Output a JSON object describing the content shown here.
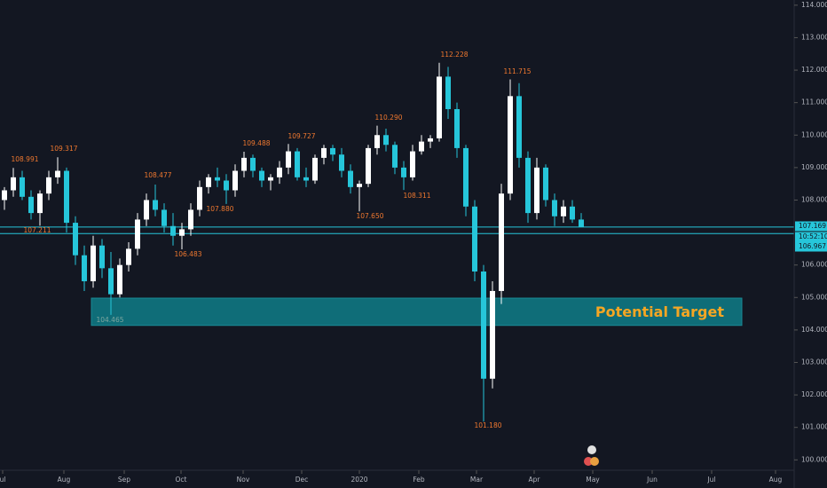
{
  "chart_data": {
    "type": "candlestick",
    "open": [
      108.0,
      108.3,
      108.7,
      108.1,
      107.6,
      108.2,
      108.7,
      108.9,
      107.3,
      106.3,
      105.5,
      106.6,
      105.9,
      105.1,
      106.0,
      106.5,
      107.4,
      108.0,
      107.7,
      107.2,
      106.9,
      107.1,
      107.7,
      108.4,
      108.7,
      108.6,
      108.3,
      108.9,
      109.3,
      108.9,
      108.6,
      108.7,
      109.0,
      109.5,
      108.7,
      108.6,
      109.3,
      109.6,
      109.4,
      108.9,
      108.4,
      108.5,
      109.6,
      110.0,
      109.7,
      109.0,
      108.7,
      109.5,
      109.8,
      109.9,
      111.8,
      110.8,
      109.6,
      107.8,
      105.8,
      102.5,
      105.2,
      108.2,
      111.2,
      109.3,
      107.6,
      109.0,
      108.0,
      107.5,
      107.8,
      107.4
    ],
    "high": [
      108.4,
      108.991,
      108.9,
      108.3,
      108.3,
      108.9,
      109.317,
      109.0,
      107.5,
      106.6,
      106.9,
      106.8,
      106.4,
      106.2,
      106.7,
      107.6,
      108.2,
      108.477,
      107.9,
      107.6,
      107.3,
      107.9,
      108.6,
      108.8,
      109.0,
      108.8,
      109.1,
      109.488,
      109.4,
      109.0,
      108.8,
      109.2,
      109.727,
      109.6,
      109.0,
      109.4,
      109.7,
      109.7,
      109.6,
      109.1,
      108.6,
      109.7,
      110.29,
      110.2,
      109.8,
      109.2,
      109.7,
      110.0,
      110.0,
      112.228,
      112.1,
      111.0,
      109.7,
      108.0,
      106.0,
      105.5,
      108.5,
      111.715,
      111.6,
      109.5,
      109.3,
      109.1,
      108.2,
      108.0,
      108.0,
      107.6
    ],
    "low": [
      107.7,
      108.1,
      108.0,
      107.4,
      107.211,
      108.0,
      108.5,
      107.0,
      106.0,
      105.2,
      105.3,
      105.6,
      104.465,
      105.0,
      105.8,
      106.3,
      107.2,
      107.5,
      107.0,
      106.6,
      106.483,
      106.9,
      107.5,
      108.2,
      108.4,
      107.88,
      108.1,
      108.7,
      108.7,
      108.4,
      108.3,
      108.5,
      108.8,
      108.6,
      108.4,
      108.5,
      109.1,
      109.2,
      108.7,
      108.2,
      107.65,
      108.4,
      109.4,
      109.5,
      108.8,
      108.311,
      108.6,
      109.4,
      109.6,
      109.8,
      110.5,
      109.3,
      107.5,
      105.5,
      101.18,
      102.2,
      104.8,
      108.0,
      109.0,
      107.3,
      107.4,
      107.8,
      107.2,
      107.3,
      107.3,
      107.17
    ],
    "close": [
      108.3,
      108.7,
      108.1,
      107.6,
      108.2,
      108.7,
      108.9,
      107.3,
      106.3,
      105.5,
      106.6,
      105.9,
      105.1,
      106.0,
      106.5,
      107.4,
      108.0,
      107.7,
      107.2,
      106.9,
      107.1,
      107.7,
      108.4,
      108.7,
      108.6,
      108.3,
      108.9,
      109.3,
      108.9,
      108.6,
      108.7,
      109.0,
      109.5,
      108.7,
      108.6,
      109.3,
      109.6,
      109.4,
      108.9,
      108.4,
      108.5,
      109.6,
      110.0,
      109.7,
      109.0,
      108.7,
      109.5,
      109.8,
      109.9,
      111.8,
      110.8,
      109.6,
      107.8,
      105.8,
      102.5,
      105.2,
      108.2,
      111.2,
      109.3,
      107.6,
      109.0,
      108.0,
      107.5,
      107.8,
      107.4,
      107.17
    ],
    "up_color": "#ffffff",
    "down_color": "#26c6da",
    "xlim": [
      -0.5,
      89.8
    ],
    "xticks": [
      {
        "value": -0.2,
        "label": "ul"
      },
      {
        "value": 6.7,
        "label": "Aug"
      },
      {
        "value": 13.5,
        "label": "Sep"
      },
      {
        "value": 19.9,
        "label": "Oct"
      },
      {
        "value": 26.9,
        "label": "Nov"
      },
      {
        "value": 33.5,
        "label": "Dec"
      },
      {
        "value": 40,
        "label": "2020"
      },
      {
        "value": 46.7,
        "label": "Feb"
      },
      {
        "value": 53.2,
        "label": "Mar"
      },
      {
        "value": 59.7,
        "label": "Apr"
      },
      {
        "value": 66.3,
        "label": "May"
      },
      {
        "value": 73,
        "label": "Jun"
      },
      {
        "value": 79.7,
        "label": "Jul"
      },
      {
        "value": 86.9,
        "label": "Aug"
      }
    ],
    "ylim": [
      99.68,
      114.16
    ],
    "yticks": [
      {
        "value": 100,
        "label": "100.000"
      },
      {
        "value": 101,
        "label": "101.000"
      },
      {
        "value": 102,
        "label": "102.000"
      },
      {
        "value": 103,
        "label": "103.000"
      },
      {
        "value": 104,
        "label": "104.000"
      },
      {
        "value": 105,
        "label": "105.000"
      },
      {
        "value": 106,
        "label": "106.000"
      },
      {
        "value": 108,
        "label": "108.000"
      },
      {
        "value": 109,
        "label": "109.000"
      },
      {
        "value": 110,
        "label": "110.000"
      },
      {
        "value": 111,
        "label": "111.000"
      },
      {
        "value": 112,
        "label": "112.000"
      },
      {
        "value": 113,
        "label": "113.000"
      },
      {
        "value": 114,
        "label": "114.000"
      }
    ],
    "annotations": [
      "108.991",
      "109.317",
      "107.211",
      "104.465",
      "108.477",
      "106.483",
      "107.880",
      "109.488",
      "109.727",
      "107.650",
      "110.290",
      "108.311",
      "112.228",
      "111.715",
      "101.180"
    ],
    "zone": {
      "label": "Potential Target",
      "top": 104.98,
      "bottom": 104.14
    },
    "price_lines": [
      {
        "value": 107.169,
        "label": "107.169"
      },
      {
        "value": 106.967,
        "label": "106.967"
      }
    ],
    "countdown": "10:52:10"
  }
}
